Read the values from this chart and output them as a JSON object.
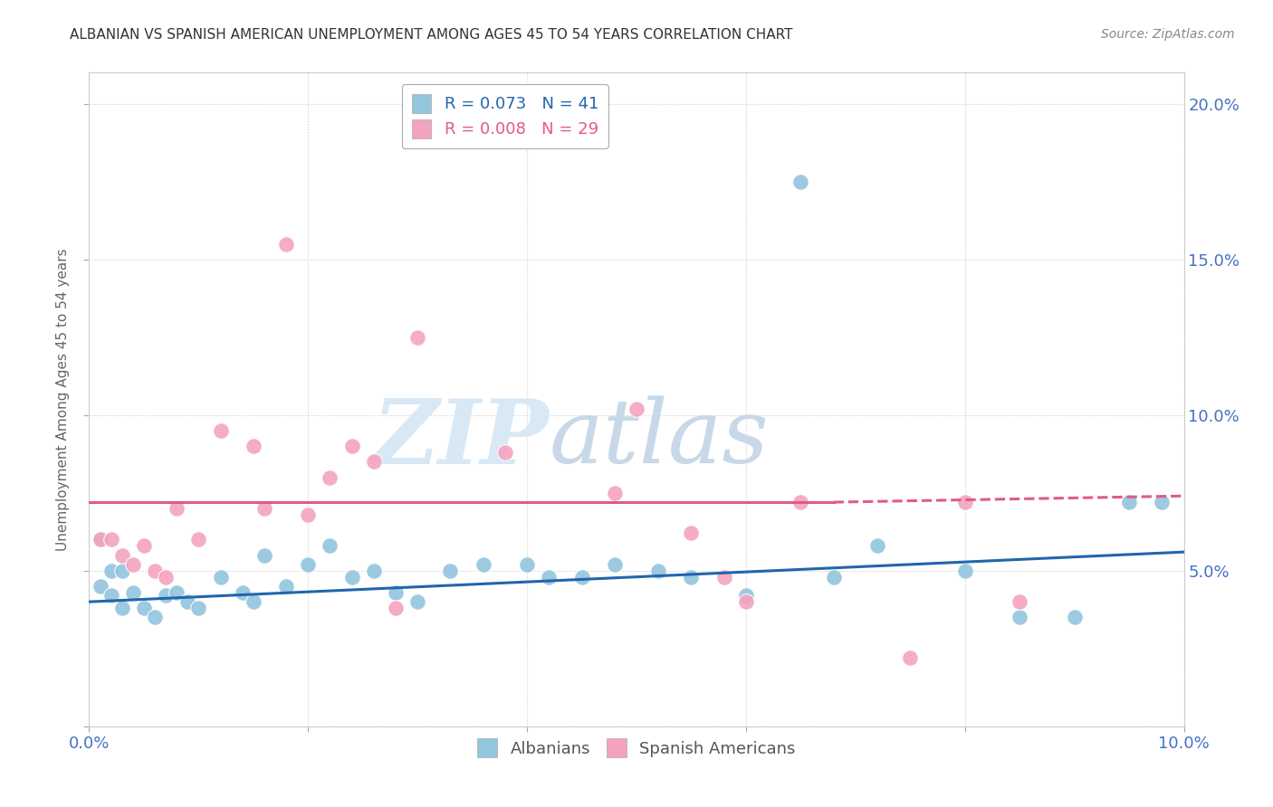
{
  "title": "ALBANIAN VS SPANISH AMERICAN UNEMPLOYMENT AMONG AGES 45 TO 54 YEARS CORRELATION CHART",
  "source": "Source: ZipAtlas.com",
  "ylabel": "Unemployment Among Ages 45 to 54 years",
  "xlim": [
    0,
    0.1
  ],
  "ylim": [
    0,
    0.21
  ],
  "albanian_R": 0.073,
  "albanian_N": 41,
  "spanish_R": 0.008,
  "spanish_N": 29,
  "albanian_color": "#92c5de",
  "spanish_color": "#f4a3bf",
  "albanian_line_color": "#2166ac",
  "spanish_line_color": "#e05a8a",
  "background_color": "#ffffff",
  "watermark_zip": "ZIP",
  "watermark_atlas": "atlas",
  "albanians_x": [
    0.001,
    0.001,
    0.002,
    0.002,
    0.003,
    0.003,
    0.004,
    0.005,
    0.006,
    0.007,
    0.008,
    0.009,
    0.01,
    0.012,
    0.014,
    0.015,
    0.016,
    0.018,
    0.02,
    0.022,
    0.024,
    0.026,
    0.028,
    0.03,
    0.033,
    0.036,
    0.04,
    0.042,
    0.045,
    0.048,
    0.052,
    0.055,
    0.06,
    0.065,
    0.068,
    0.072,
    0.08,
    0.085,
    0.09,
    0.095,
    0.098
  ],
  "albanians_y": [
    0.06,
    0.045,
    0.05,
    0.042,
    0.038,
    0.05,
    0.043,
    0.038,
    0.035,
    0.042,
    0.043,
    0.04,
    0.038,
    0.048,
    0.043,
    0.04,
    0.055,
    0.045,
    0.052,
    0.058,
    0.048,
    0.05,
    0.043,
    0.04,
    0.05,
    0.052,
    0.052,
    0.048,
    0.048,
    0.052,
    0.05,
    0.048,
    0.042,
    0.175,
    0.048,
    0.058,
    0.05,
    0.035,
    0.035,
    0.072,
    0.072
  ],
  "spanish_x": [
    0.001,
    0.002,
    0.003,
    0.004,
    0.005,
    0.006,
    0.007,
    0.008,
    0.01,
    0.012,
    0.015,
    0.016,
    0.018,
    0.02,
    0.022,
    0.024,
    0.026,
    0.028,
    0.03,
    0.038,
    0.048,
    0.05,
    0.055,
    0.058,
    0.06,
    0.065,
    0.075,
    0.08,
    0.085
  ],
  "spanish_y": [
    0.06,
    0.06,
    0.055,
    0.052,
    0.058,
    0.05,
    0.048,
    0.07,
    0.06,
    0.095,
    0.09,
    0.07,
    0.155,
    0.068,
    0.08,
    0.09,
    0.085,
    0.038,
    0.125,
    0.088,
    0.075,
    0.102,
    0.062,
    0.048,
    0.04,
    0.072,
    0.022,
    0.072,
    0.04
  ],
  "alb_line_x0": 0.0,
  "alb_line_y0": 0.04,
  "alb_line_x1": 0.1,
  "alb_line_y1": 0.056,
  "spa_line_x0": 0.0,
  "spa_line_y0": 0.072,
  "spa_line_x1": 0.068,
  "spa_line_y1": 0.072,
  "spa_line_x1_dash": 0.1,
  "spa_line_y1_dash": 0.074
}
